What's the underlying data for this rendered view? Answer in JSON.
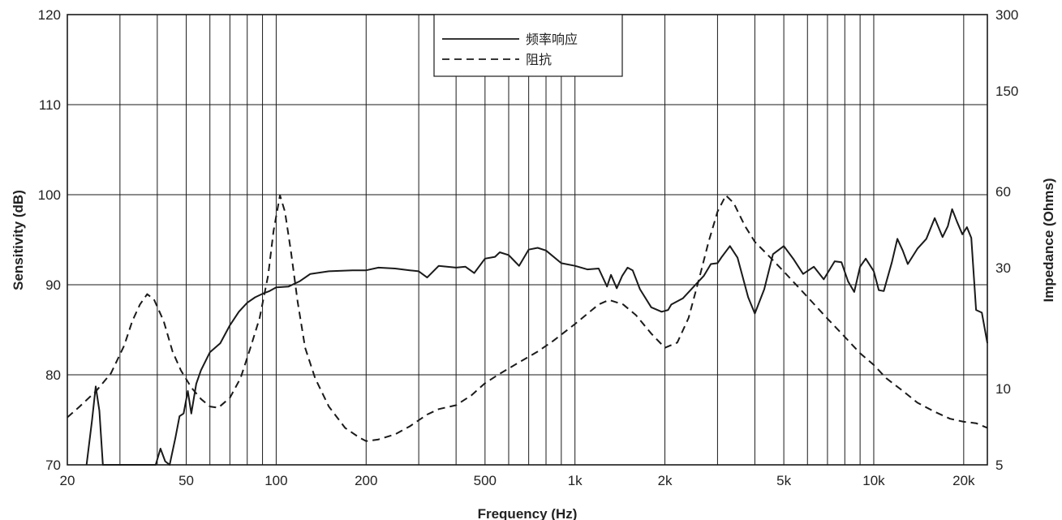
{
  "chart_data": {
    "type": "line",
    "xlabel": "Frequency (Hz)",
    "ylabel": "Sensitivity (dB)",
    "y2label": "Impedance (Ohms)",
    "x_scale": "log",
    "xlim": [
      20,
      24000
    ],
    "ylim": [
      70,
      120
    ],
    "y2_scale": "log",
    "y2lim": [
      5,
      300
    ],
    "grid": true,
    "legend_position": "top-center",
    "x_ticks": [
      {
        "v": 20,
        "label": "20"
      },
      {
        "v": 50,
        "label": "50"
      },
      {
        "v": 100,
        "label": "100"
      },
      {
        "v": 200,
        "label": "200"
      },
      {
        "v": 500,
        "label": "500"
      },
      {
        "v": 1000,
        "label": "1k"
      },
      {
        "v": 2000,
        "label": "2k"
      },
      {
        "v": 5000,
        "label": "5k"
      },
      {
        "v": 10000,
        "label": "10k"
      },
      {
        "v": 20000,
        "label": "20k"
      }
    ],
    "y_ticks": [
      {
        "v": 70,
        "label": "70"
      },
      {
        "v": 80,
        "label": "80"
      },
      {
        "v": 90,
        "label": "90"
      },
      {
        "v": 100,
        "label": "100"
      },
      {
        "v": 110,
        "label": "110"
      },
      {
        "v": 120,
        "label": "120"
      }
    ],
    "y2_ticks": [
      {
        "v": 5,
        "label": "5"
      },
      {
        "v": 10,
        "label": "10"
      },
      {
        "v": 30,
        "label": "30"
      },
      {
        "v": 60,
        "label": "60"
      },
      {
        "v": 150,
        "label": "150"
      },
      {
        "v": 300,
        "label": "300"
      }
    ],
    "x_gridlines": [
      30,
      40,
      50,
      60,
      70,
      80,
      90,
      100,
      200,
      300,
      400,
      500,
      600,
      700,
      800,
      900,
      1000,
      2000,
      3000,
      4000,
      5000,
      6000,
      7000,
      8000,
      9000,
      10000,
      20000
    ],
    "y_gridlines": [
      80,
      90,
      100,
      110
    ],
    "series": [
      {
        "name": "频率响应",
        "style": "solid",
        "axis": "left",
        "color": "#1a1a1a",
        "points": [
          [
            23.2,
            70
          ],
          [
            24.2,
            75
          ],
          [
            24.9,
            78.7
          ],
          [
            25.6,
            76
          ],
          [
            26.3,
            70
          ],
          [
            29,
            70
          ],
          [
            35,
            70
          ],
          [
            39.5,
            70
          ],
          [
            41,
            71.8
          ],
          [
            42.5,
            70.4
          ],
          [
            44,
            70
          ],
          [
            46,
            73
          ],
          [
            47.5,
            75.4
          ],
          [
            49,
            75.7
          ],
          [
            50.6,
            78.2
          ],
          [
            52,
            75.7
          ],
          [
            54,
            79
          ],
          [
            56,
            80.5
          ],
          [
            60,
            82.5
          ],
          [
            65,
            83.5
          ],
          [
            70,
            85.5
          ],
          [
            75,
            87
          ],
          [
            80,
            88
          ],
          [
            85,
            88.6
          ],
          [
            90,
            89
          ],
          [
            95,
            89.3
          ],
          [
            100,
            89.7
          ],
          [
            110,
            89.8
          ],
          [
            120,
            90.4
          ],
          [
            130,
            91.2
          ],
          [
            150,
            91.5
          ],
          [
            180,
            91.6
          ],
          [
            200,
            91.6
          ],
          [
            220,
            91.9
          ],
          [
            250,
            91.8
          ],
          [
            280,
            91.6
          ],
          [
            300,
            91.5
          ],
          [
            320,
            90.8
          ],
          [
            350,
            92.1
          ],
          [
            400,
            91.9
          ],
          [
            430,
            92
          ],
          [
            460,
            91.3
          ],
          [
            500,
            92.9
          ],
          [
            540,
            93.1
          ],
          [
            560,
            93.6
          ],
          [
            600,
            93.3
          ],
          [
            650,
            92.1
          ],
          [
            700,
            93.9
          ],
          [
            750,
            94.1
          ],
          [
            800,
            93.8
          ],
          [
            900,
            92.4
          ],
          [
            1000,
            92.1
          ],
          [
            1100,
            91.7
          ],
          [
            1200,
            91.8
          ],
          [
            1280,
            89.8
          ],
          [
            1320,
            91.1
          ],
          [
            1380,
            89.6
          ],
          [
            1440,
            91
          ],
          [
            1500,
            91.9
          ],
          [
            1560,
            91.6
          ],
          [
            1650,
            89.5
          ],
          [
            1800,
            87.5
          ],
          [
            1950,
            87
          ],
          [
            2050,
            87.2
          ],
          [
            2100,
            87.8
          ],
          [
            2300,
            88.5
          ],
          [
            2500,
            89.8
          ],
          [
            2700,
            91
          ],
          [
            2850,
            92.3
          ],
          [
            3000,
            92.4
          ],
          [
            3100,
            93.1
          ],
          [
            3300,
            94.3
          ],
          [
            3500,
            93
          ],
          [
            3800,
            88.6
          ],
          [
            4000,
            86.8
          ],
          [
            4300,
            89.5
          ],
          [
            4600,
            93.4
          ],
          [
            5000,
            94.3
          ],
          [
            5400,
            92.8
          ],
          [
            5800,
            91.2
          ],
          [
            6300,
            92
          ],
          [
            6800,
            90.6
          ],
          [
            7400,
            92.6
          ],
          [
            7800,
            92.5
          ],
          [
            8200,
            90.4
          ],
          [
            8600,
            89.2
          ],
          [
            9000,
            92
          ],
          [
            9400,
            92.9
          ],
          [
            10000,
            91.5
          ],
          [
            10400,
            89.4
          ],
          [
            10800,
            89.3
          ],
          [
            11500,
            92.5
          ],
          [
            12000,
            95.1
          ],
          [
            12500,
            93.8
          ],
          [
            13000,
            92.3
          ],
          [
            14000,
            94
          ],
          [
            15000,
            95.1
          ],
          [
            16000,
            97.4
          ],
          [
            17000,
            95.3
          ],
          [
            17700,
            96.5
          ],
          [
            18300,
            98.4
          ],
          [
            19000,
            97
          ],
          [
            19800,
            95.6
          ],
          [
            20500,
            96.4
          ],
          [
            21200,
            95.2
          ],
          [
            22000,
            87.2
          ],
          [
            23000,
            86.9
          ],
          [
            24000,
            83.5
          ]
        ]
      },
      {
        "name": "阻抗",
        "style": "dashed",
        "axis": "right",
        "color": "#1a1a1a",
        "points": [
          [
            20,
            7.7
          ],
          [
            22,
            8.5
          ],
          [
            25,
            9.8
          ],
          [
            28,
            11.5
          ],
          [
            31,
            14.8
          ],
          [
            33,
            18.5
          ],
          [
            35,
            21.5
          ],
          [
            37,
            23.6
          ],
          [
            39,
            22.5
          ],
          [
            42,
            18.5
          ],
          [
            45,
            14
          ],
          [
            48,
            11.8
          ],
          [
            52,
            10.1
          ],
          [
            56,
            9.1
          ],
          [
            60,
            8.5
          ],
          [
            64,
            8.4
          ],
          [
            70,
            9.2
          ],
          [
            76,
            11
          ],
          [
            82,
            14.5
          ],
          [
            88,
            19
          ],
          [
            94,
            28
          ],
          [
            98,
            42
          ],
          [
            103,
            58
          ],
          [
            107,
            50
          ],
          [
            112,
            35
          ],
          [
            118,
            22
          ],
          [
            125,
            14.5
          ],
          [
            135,
            11
          ],
          [
            150,
            8.5
          ],
          [
            170,
            7
          ],
          [
            190,
            6.4
          ],
          [
            200,
            6.2
          ],
          [
            220,
            6.3
          ],
          [
            250,
            6.6
          ],
          [
            280,
            7.1
          ],
          [
            320,
            7.9
          ],
          [
            350,
            8.3
          ],
          [
            400,
            8.6
          ],
          [
            450,
            9.4
          ],
          [
            500,
            10.5
          ],
          [
            550,
            11.3
          ],
          [
            650,
            12.7
          ],
          [
            750,
            14
          ],
          [
            850,
            15.5
          ],
          [
            1000,
            18
          ],
          [
            1200,
            21.5
          ],
          [
            1300,
            22.4
          ],
          [
            1450,
            21.5
          ],
          [
            1600,
            19.5
          ],
          [
            1800,
            16.5
          ],
          [
            2000,
            14.5
          ],
          [
            2200,
            15.2
          ],
          [
            2400,
            19
          ],
          [
            2600,
            27
          ],
          [
            2800,
            38
          ],
          [
            3000,
            50
          ],
          [
            3200,
            58
          ],
          [
            3400,
            54
          ],
          [
            3700,
            44
          ],
          [
            4000,
            38
          ],
          [
            4500,
            33
          ],
          [
            5000,
            29
          ],
          [
            6000,
            23
          ],
          [
            7000,
            18.9
          ],
          [
            8000,
            16
          ],
          [
            9000,
            13.8
          ],
          [
            10000,
            12.4
          ],
          [
            11000,
            11
          ],
          [
            12500,
            9.8
          ],
          [
            14000,
            8.8
          ],
          [
            16000,
            8.1
          ],
          [
            18000,
            7.6
          ],
          [
            20000,
            7.4
          ],
          [
            22000,
            7.3
          ],
          [
            24000,
            7.0
          ]
        ]
      }
    ]
  }
}
